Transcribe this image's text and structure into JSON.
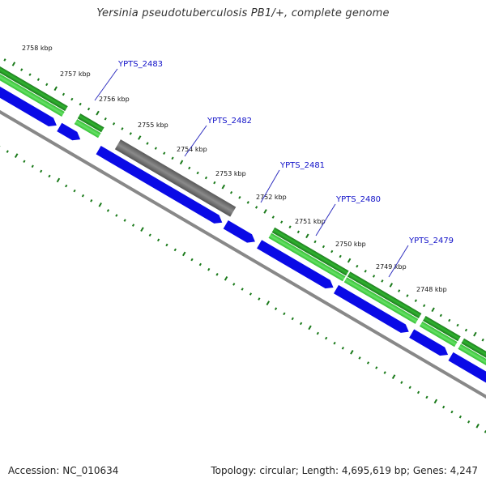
{
  "map": {
    "title": "Yersinia pseudotuberculosis PB1/+, complete genome",
    "accession": "Accession: NC_010634",
    "summary": "Topology: circular; Length: 4,695,619 bp; Genes: 4,247"
  },
  "kbp_labels": [
    "2758 kbp",
    "2757 kbp",
    "2756 kbp",
    "2755 kbp",
    "2754 kbp",
    "2753 kbp",
    "2752 kbp",
    "2751 kbp",
    "2750 kbp",
    "2749 kbp",
    "2748 kbp"
  ],
  "gene_labels": [
    "YPTS_2483",
    "YPTS_2482",
    "YPTS_2481",
    "YPTS_2480",
    "YPTS_2479"
  ],
  "colors": {
    "cds_blue": "#0a0ae6",
    "feature_grey": "#666666",
    "gene_green_dark": "#1a8f1a",
    "gene_green_light": "#33cc33",
    "tick_green": "#1a7a1a",
    "backbone": "#888888",
    "label_blue": "#1010c8"
  }
}
